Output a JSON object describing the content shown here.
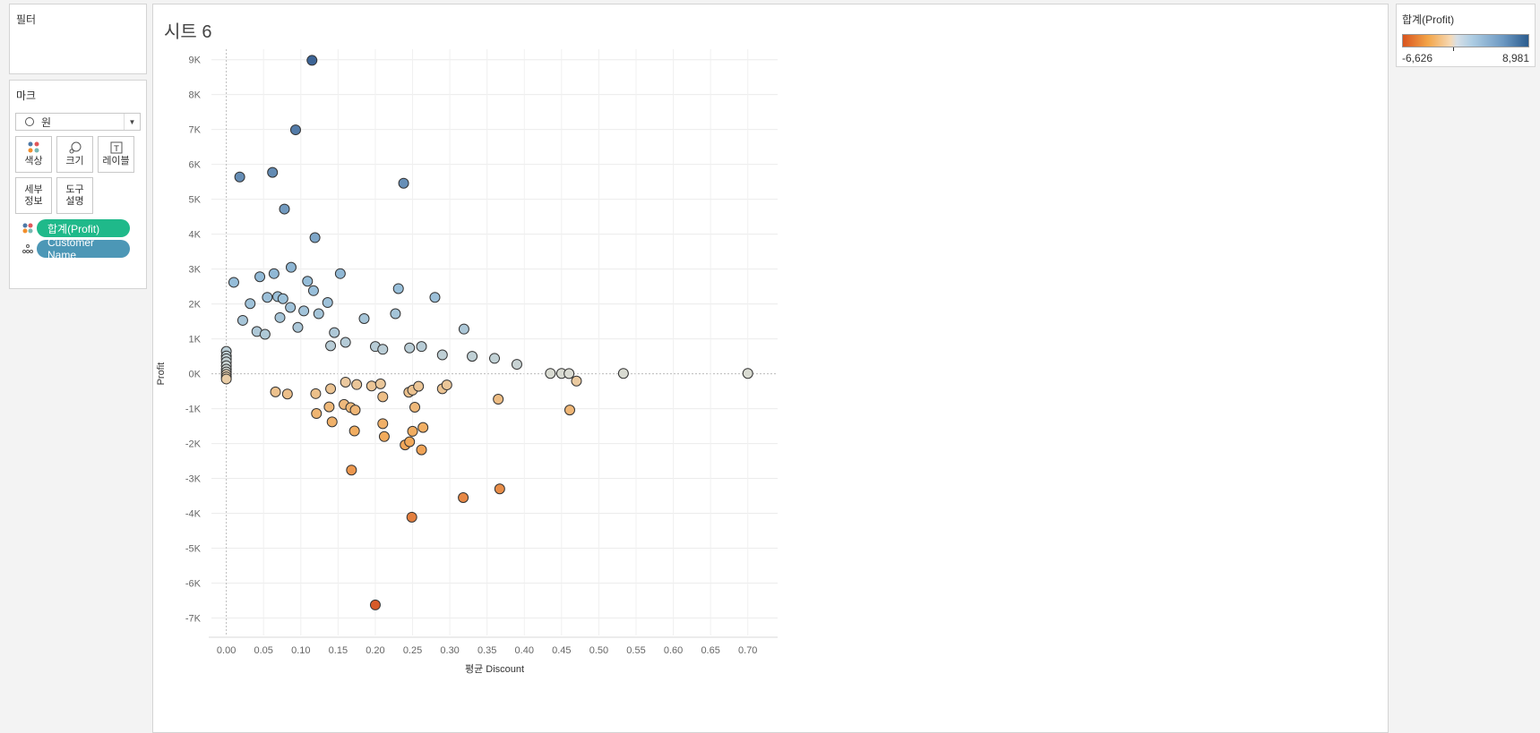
{
  "filters": {
    "title": "필터"
  },
  "marks": {
    "title": "마크",
    "mark_type": "원",
    "cards": {
      "color": "색상",
      "size": "크기",
      "label": "레이블",
      "detail": "세부\n정보",
      "tooltip": "도구\n설명"
    },
    "pills": {
      "color_field": "합계(Profit)",
      "detail_field": "Customer Name"
    },
    "colors": {
      "color_pill": "#1fb98a",
      "detail_pill": "#4c97b6"
    }
  },
  "sheet": {
    "title": "시트 6"
  },
  "legend": {
    "title": "합계(Profit)",
    "min_label": "-6,626",
    "max_label": "8,981"
  },
  "chart_data": {
    "type": "scatter",
    "title": "",
    "xlabel": "평균 Discount",
    "ylabel": "Profit",
    "xlim": [
      -0.02,
      0.74
    ],
    "ylim": [
      -7500,
      9300
    ],
    "x_ticks": [
      0.0,
      0.05,
      0.1,
      0.15,
      0.2,
      0.25,
      0.3,
      0.35,
      0.4,
      0.45,
      0.5,
      0.55,
      0.6,
      0.65,
      0.7
    ],
    "x_tick_labels": [
      "0.00",
      "0.05",
      "0.10",
      "0.15",
      "0.20",
      "0.25",
      "0.30",
      "0.35",
      "0.40",
      "0.45",
      "0.50",
      "0.55",
      "0.60",
      "0.65",
      "0.70"
    ],
    "y_ticks": [
      -7000,
      -6000,
      -5000,
      -4000,
      -3000,
      -2000,
      -1000,
      0,
      1000,
      2000,
      3000,
      4000,
      5000,
      6000,
      7000,
      8000,
      9000
    ],
    "y_tick_labels": [
      "-7K",
      "-6K",
      "-5K",
      "-4K",
      "-3K",
      "-2K",
      "-1K",
      "0K",
      "1K",
      "2K",
      "3K",
      "4K",
      "5K",
      "6K",
      "7K",
      "8K",
      "9K"
    ],
    "color_range": [
      -6626,
      8981
    ],
    "x": [
      0.115,
      0.093,
      0.018,
      0.062,
      0.238,
      0.078,
      0.119,
      0.087,
      0.064,
      0.153,
      0.01,
      0.045,
      0.109,
      0.231,
      0.28,
      0.069,
      0.117,
      0.076,
      0.136,
      0.032,
      0.055,
      0.086,
      0.104,
      0.124,
      0.319,
      0.227,
      0.185,
      0.145,
      0.096,
      0.041,
      0.022,
      0.052,
      0.072,
      0.14,
      0.16,
      0.2,
      0.21,
      0.246,
      0.262,
      0.29,
      0.33,
      0.36,
      0.39,
      0.435,
      0.45,
      0.46,
      0.47,
      0.533,
      0.7,
      0.0,
      0.0,
      0.0,
      0.0,
      0.0,
      0.0,
      0.0,
      0.0,
      0.0,
      0.0,
      0.066,
      0.082,
      0.12,
      0.14,
      0.16,
      0.175,
      0.195,
      0.207,
      0.21,
      0.245,
      0.25,
      0.258,
      0.29,
      0.296,
      0.365,
      0.461,
      0.158,
      0.167,
      0.142,
      0.172,
      0.21,
      0.24,
      0.25,
      0.253,
      0.264,
      0.246,
      0.168,
      0.318,
      0.367,
      0.249,
      0.2,
      0.262,
      0.212,
      0.173,
      0.138,
      0.121
    ],
    "y": [
      8981,
      6990,
      5640,
      5770,
      5460,
      4720,
      3900,
      3050,
      2870,
      2870,
      2620,
      2780,
      2650,
      2440,
      2190,
      2210,
      2380,
      2150,
      2040,
      2010,
      2190,
      1900,
      1800,
      1720,
      1280,
      1720,
      1580,
      1180,
      1330,
      1210,
      1530,
      1130,
      1610,
      800,
      900,
      780,
      700,
      740,
      780,
      540,
      500,
      440,
      270,
      10,
      10,
      5,
      -210,
      10,
      10,
      640,
      510,
      430,
      340,
      230,
      130,
      50,
      -20,
      -90,
      -150,
      -520,
      -580,
      -570,
      -430,
      -240,
      -310,
      -350,
      -290,
      -660,
      -530,
      -470,
      -360,
      -430,
      -320,
      -730,
      -1040,
      -880,
      -970,
      -1380,
      -1640,
      -1430,
      -2040,
      -1650,
      -960,
      -1540,
      -1950,
      -2760,
      -3550,
      -3300,
      -4110,
      -6626,
      -2180,
      -1800,
      -1040,
      -950,
      -1140
    ]
  }
}
